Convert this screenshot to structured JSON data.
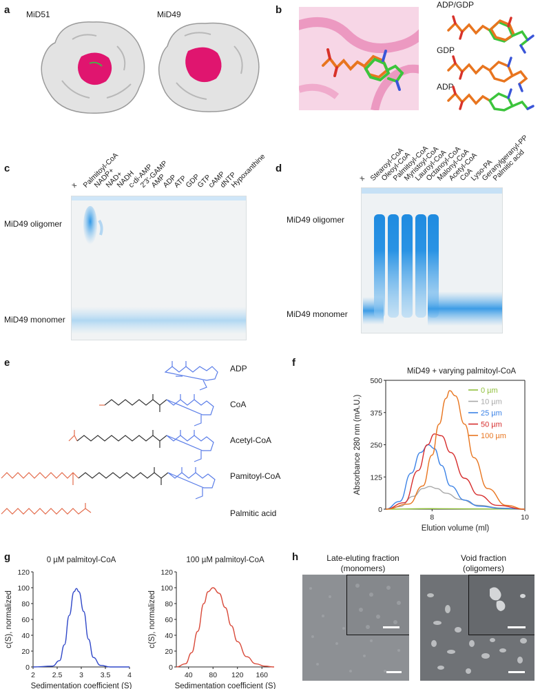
{
  "panels": {
    "a": {
      "letter": "a",
      "structures": [
        "MiD51",
        "MiD49"
      ]
    },
    "b": {
      "letter": "b",
      "ligands": [
        "ADP/GDP",
        "GDP",
        "ADP"
      ]
    },
    "c": {
      "letter": "c",
      "lanes": [
        "x",
        "Palmitoyl-CoA",
        "NADP+",
        "NAD+",
        "NADH",
        "c-di-AMP",
        "2'3'-GAMP",
        "AMP",
        "ADP",
        "ATP",
        "GDP",
        "GTP",
        "cAMP",
        "dNTP",
        "Hypoxanthine"
      ],
      "band_labels": [
        "MiD49 oligomer",
        "MiD49 monomer"
      ]
    },
    "d": {
      "letter": "d",
      "lanes": [
        "x",
        "Stearoyl-CoA",
        "Oleoyl-CoA",
        "Palmitoyl-CoA",
        "Myristoyl-CoA",
        "Lauroyl-CoA",
        "Octanoyl-CoA",
        "Malonyl-CoA",
        "Acetyl-CoA",
        "CoA",
        "Lyso-PA",
        "Geranylgeranyl-PP",
        "Palmitic acid"
      ],
      "band_labels": [
        "MiD49 oligomer",
        "MiD49 monomer"
      ]
    },
    "e": {
      "letter": "e",
      "molecules": [
        "ADP",
        "CoA",
        "Acetyl-CoA",
        "Pamitoyl-CoA",
        "Palmitic acid"
      ]
    },
    "h": {
      "letter": "h",
      "left_title": [
        "Late-eluting fraction",
        "(monomers)"
      ],
      "right_title": [
        "Void fraction",
        "(oligomers)"
      ]
    }
  },
  "chart_data": [
    {
      "panel": "f",
      "type": "line",
      "title": "MiD49 + varying palmitoyl-CoA",
      "xlabel": "Elution volume (ml)",
      "ylabel": "Absorbance 280 nm (mA.U.)",
      "xlim": [
        7.0,
        10.0
      ],
      "ylim": [
        0,
        500
      ],
      "xticks": [
        "8",
        "10"
      ],
      "yticks": [
        "0",
        "125",
        "250",
        "375",
        "500"
      ],
      "legend_position": "right",
      "series": [
        {
          "name": "0 µm",
          "color": "#8fbf3a",
          "x": [
            7.0,
            8.0,
            9.0,
            10.0
          ],
          "y": [
            0,
            2,
            1,
            0
          ]
        },
        {
          "name": "10 µm",
          "color": "#a8a8a8",
          "x": [
            7.0,
            7.3,
            7.6,
            7.8,
            7.95,
            8.1,
            8.3,
            8.6,
            9.0,
            9.5,
            10.0
          ],
          "y": [
            0,
            10,
            50,
            80,
            88,
            80,
            62,
            38,
            15,
            4,
            0
          ]
        },
        {
          "name": "25 µm",
          "color": "#3b82e6",
          "x": [
            7.0,
            7.3,
            7.55,
            7.75,
            7.92,
            8.05,
            8.2,
            8.4,
            8.7,
            9.0,
            9.5,
            10.0
          ],
          "y": [
            0,
            30,
            140,
            220,
            250,
            235,
            170,
            90,
            35,
            12,
            3,
            0
          ]
        },
        {
          "name": "50 µm",
          "color": "#d62c2c",
          "x": [
            7.0,
            7.4,
            7.7,
            7.9,
            8.05,
            8.2,
            8.4,
            8.7,
            9.0,
            9.4,
            10.0
          ],
          "y": [
            0,
            25,
            150,
            250,
            292,
            285,
            220,
            120,
            55,
            15,
            0
          ]
        },
        {
          "name": "100 µm",
          "color": "#e8751f",
          "x": [
            7.0,
            7.5,
            7.8,
            8.0,
            8.15,
            8.3,
            8.38,
            8.5,
            8.7,
            8.9,
            9.2,
            9.6,
            10.0
          ],
          "y": [
            0,
            20,
            90,
            210,
            330,
            430,
            460,
            440,
            330,
            200,
            80,
            15,
            0
          ]
        }
      ]
    },
    {
      "panel": "g-left",
      "type": "line",
      "title": "0 µM palmitoyl-CoA",
      "xlabel": "Sedimentation coefficient (S)",
      "ylabel": "c(S), normalized",
      "xlim": [
        2,
        4
      ],
      "ylim": [
        0,
        120
      ],
      "xticks": [
        "2",
        "2.5",
        "3",
        "3.5",
        "4"
      ],
      "yticks": [
        "0",
        "20",
        "40",
        "60",
        "80",
        "100",
        "120"
      ],
      "series": [
        {
          "color": "#2f47c8",
          "x": [
            2.0,
            2.4,
            2.55,
            2.65,
            2.75,
            2.85,
            2.9,
            2.95,
            3.05,
            3.15,
            3.25,
            3.4,
            3.6,
            4.0
          ],
          "y": [
            0,
            1,
            8,
            28,
            65,
            95,
            99,
            95,
            70,
            35,
            12,
            2,
            0,
            0
          ]
        }
      ]
    },
    {
      "panel": "g-right",
      "type": "line",
      "title": "100 µM palmitoyl-CoA",
      "xlabel": "Sedimentation coefficient (S)",
      "ylabel": "c(S), normalized",
      "xlim": [
        20,
        180
      ],
      "ylim": [
        0,
        120
      ],
      "xticks": [
        "40",
        "80",
        "120",
        "160"
      ],
      "yticks": [
        "0",
        "20",
        "40",
        "60",
        "80",
        "100",
        "120"
      ],
      "series": [
        {
          "color": "#d94a3a",
          "x": [
            20,
            35,
            45,
            55,
            65,
            72,
            80,
            90,
            100,
            110,
            120,
            135,
            150,
            165,
            180
          ],
          "y": [
            0,
            4,
            18,
            45,
            80,
            95,
            100,
            93,
            75,
            52,
            32,
            13,
            4,
            1,
            0
          ]
        }
      ]
    }
  ]
}
